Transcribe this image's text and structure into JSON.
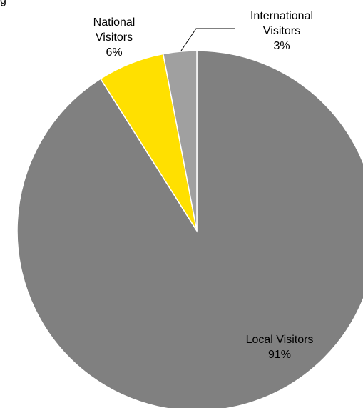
{
  "clipped_text": "g",
  "chart_data": {
    "type": "pie",
    "title": "",
    "slices": [
      {
        "label_lines": [
          "Local Visitors",
          "91%"
        ],
        "value": 91,
        "color": "#808080"
      },
      {
        "label_lines": [
          "National",
          "Visitors",
          "6%"
        ],
        "value": 6,
        "color": "#FFE000"
      },
      {
        "label_lines": [
          "International",
          "Visitors",
          "3%"
        ],
        "value": 3,
        "color": "#A0A0A0"
      }
    ],
    "start_angle": "12 o'clock",
    "direction": "clockwise",
    "legend": "none",
    "labels": "outside for small slices, inside for large slice"
  }
}
